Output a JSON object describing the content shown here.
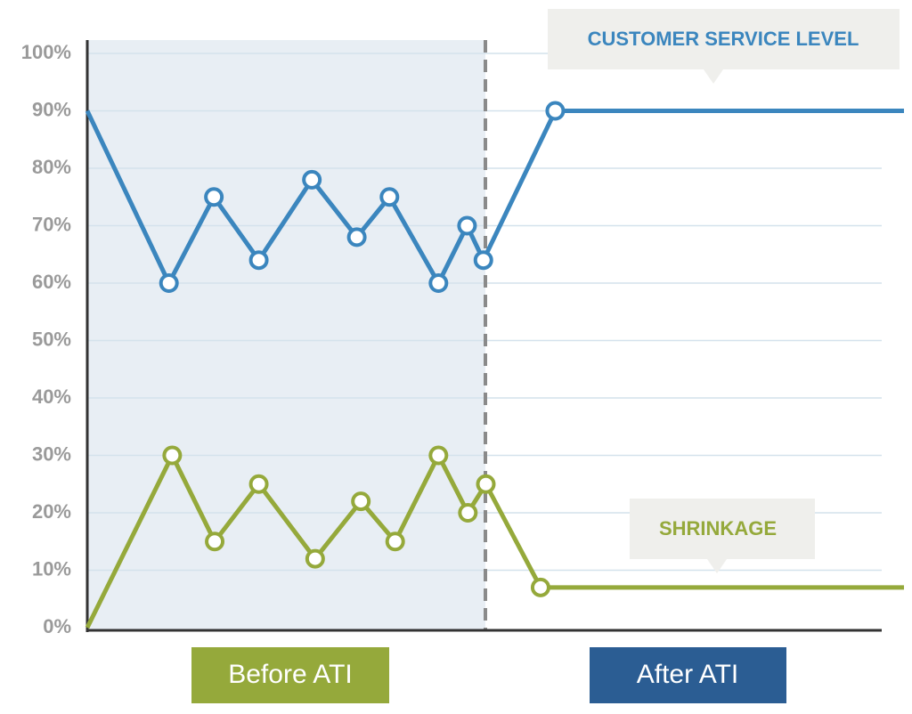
{
  "chart_data": {
    "type": "line",
    "ylim": [
      0,
      100
    ],
    "yticks": [
      {
        "value": 0,
        "label": "0%"
      },
      {
        "value": 10,
        "label": "10%"
      },
      {
        "value": 20,
        "label": "20%"
      },
      {
        "value": 30,
        "label": "30%"
      },
      {
        "value": 40,
        "label": "40%"
      },
      {
        "value": 50,
        "label": "50%"
      },
      {
        "value": 60,
        "label": "60%"
      },
      {
        "value": 70,
        "label": "70%"
      },
      {
        "value": 80,
        "label": "80%"
      },
      {
        "value": 90,
        "label": "90%"
      },
      {
        "value": 100,
        "label": "100%"
      }
    ],
    "xlim": [
      0,
      100
    ],
    "grid": true,
    "series": [
      {
        "name": "CUSTOMER SERVICE LEVEL",
        "color": "#3b86be",
        "x": [
          0,
          10,
          15.5,
          21,
          27.5,
          33,
          37,
          43,
          46.5,
          48.5,
          57.3,
          100
        ],
        "values": [
          90,
          60,
          75,
          64,
          78,
          68,
          75,
          60,
          70,
          64,
          90,
          90
        ]
      },
      {
        "name": "SHRINKAGE",
        "color": "#95a93b",
        "x": [
          0,
          10.4,
          15.6,
          21,
          27.9,
          33.5,
          37.7,
          43,
          46.6,
          48.8,
          55.5,
          100
        ],
        "values": [
          0,
          30,
          15,
          25,
          12,
          22,
          15,
          30,
          20,
          25,
          7,
          7
        ]
      }
    ],
    "periods": [
      "Before ATI",
      "After ATI"
    ]
  }
}
